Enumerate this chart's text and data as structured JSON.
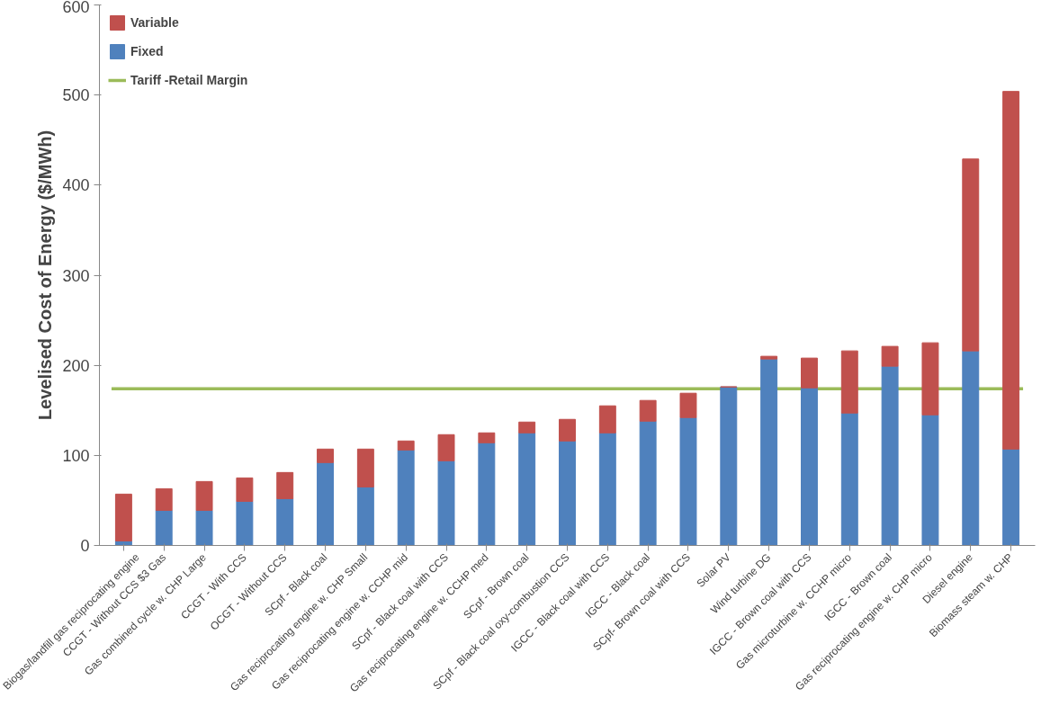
{
  "chart_data": {
    "type": "bar",
    "stacked": true,
    "ylabel": "Levelised Cost of Energy ($/MWh)",
    "categories": [
      "Biogas/landfill gas reciprocating engine",
      "CCGT - Without CCS $3 Gas",
      "Gas combined cycle w. CHP Large",
      "CCGT - With CCS",
      "OCGT - Without CCS",
      "SCpf - Black coal",
      "Gas reciprocating engine w. CHP Small",
      "Gas reciprocating engine w. CCHP mid",
      "SCpf - Black coal with CCS",
      "Gas reciprocating engine w. CCHP med",
      "SCpf - Brown coal",
      "SCpf - Black coal oxy-combustion CCS",
      "IGCC - Black coal with CCS",
      "IGCC - Black coal",
      "SCpf- Brown coal with CCS",
      "Solar PV",
      "Wind turbine DG",
      "IGCC - Brown coal with CCS",
      "Gas microturbine w. CCHP micro",
      "IGCC - Brown coal",
      "Gas reciprocating engine w. CHP micro",
      "Diesel engine",
      "Biomass steam w. CHP"
    ],
    "series": [
      {
        "name": "Fixed",
        "color": "#4f81bd",
        "values": [
          5,
          39,
          39,
          49,
          52,
          92,
          65,
          106,
          94,
          114,
          125,
          116,
          125,
          138,
          142,
          176,
          207,
          175,
          147,
          199,
          145,
          216,
          107
        ]
      },
      {
        "name": "Variable",
        "color": "#c0504d",
        "values": [
          52,
          24,
          32,
          26,
          29,
          15,
          42,
          10,
          29,
          11,
          12,
          24,
          30,
          23,
          27,
          0,
          3,
          33,
          69,
          22,
          80,
          213,
          397
        ]
      }
    ],
    "ref_lines": [
      {
        "axis": "y",
        "value": 174,
        "label": "Tariff -Retail Margin",
        "color": "#9bbb59",
        "line_style": "solid"
      }
    ],
    "ylim": [
      0,
      600
    ],
    "yticks": [
      0,
      100,
      200,
      300,
      400,
      500,
      600
    ],
    "grid": false,
    "legend": "top left"
  }
}
